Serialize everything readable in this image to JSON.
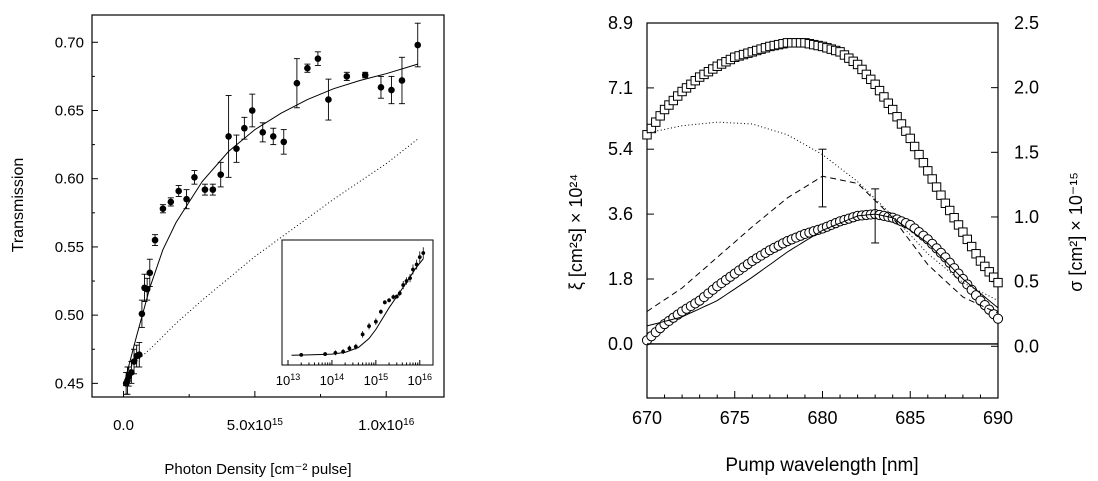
{
  "chart_data": [
    {
      "type": "scatter",
      "xlabel": "Photon Density [cm⁻² pulse]",
      "ylabel": "Transmission",
      "xlim": [
        -1200000000000000.0,
        1.22e+16
      ],
      "ylim": [
        0.44,
        0.72
      ],
      "xticks": [
        {
          "value": 0,
          "label": "0.0"
        },
        {
          "value": 5000000000000000.0,
          "label": "5.0x10",
          "exp": "15"
        },
        {
          "value": 1e+16,
          "label": "1.0x10",
          "exp": "16"
        }
      ],
      "yticks": [
        {
          "value": 0.45,
          "label": "0.45"
        },
        {
          "value": 0.5,
          "label": "0.50"
        },
        {
          "value": 0.55,
          "label": "0.55"
        },
        {
          "value": 0.6,
          "label": "0.60"
        },
        {
          "value": 0.65,
          "label": "0.65"
        },
        {
          "value": 0.7,
          "label": "0.70"
        }
      ],
      "series": [
        {
          "style": "filled-circle",
          "x": [
            100000000000000.0,
            150000000000000.0,
            200000000000000.0,
            300000000000000.0,
            400000000000000.0,
            500000000000000.0,
            600000000000000.0,
            700000000000000.0,
            800000000000000.0,
            900000000000000.0,
            1000000000000000.0,
            1200000000000000.0,
            1500000000000000.0,
            1800000000000000.0,
            2100000000000000.0,
            2400000000000000.0,
            2700000000000000.0,
            3100000000000000.0,
            3400000000000000.0,
            3700000000000000.0,
            4000000000000000.0,
            4300000000000000.0,
            4600000000000000.0,
            4900000000000000.0,
            5300000000000000.0,
            5700000000000000.0,
            6100000000000000.0,
            6600000000000000.0,
            7000000000000000.0,
            7400000000000000.0,
            7800000000000000.0,
            8500000000000000.0,
            9200000000000000.0,
            9800000000000000.0,
            1.02e+16,
            1.06e+16,
            1.12e+16
          ],
          "y": [
            0.45,
            0.452,
            0.455,
            0.458,
            0.466,
            0.47,
            0.471,
            0.501,
            0.52,
            0.519,
            0.531,
            0.555,
            0.578,
            0.583,
            0.591,
            0.585,
            0.601,
            0.592,
            0.592,
            0.603,
            0.631,
            0.622,
            0.637,
            0.65,
            0.634,
            0.631,
            0.627,
            0.67,
            0.681,
            0.688,
            0.658,
            0.675,
            0.676,
            0.667,
            0.665,
            0.672,
            0.698
          ],
          "err": [
            0.008,
            0.01,
            0.007,
            0.008,
            0.009,
            0.008,
            0.009,
            0.01,
            0.01,
            0.008,
            0.01,
            0.004,
            0.003,
            0.003,
            0.004,
            0.007,
            0.005,
            0.004,
            0.004,
            0.009,
            0.03,
            0.01,
            0.008,
            0.012,
            0.007,
            0.006,
            0.009,
            0.018,
            0.003,
            0.005,
            0.015,
            0.003,
            0.002,
            0.008,
            0.01,
            0.017,
            0.016
          ]
        },
        {
          "style": "solid-line",
          "x": [
            0,
            500000000000000.0,
            1000000000000000.0,
            1500000000000000.0,
            2000000000000000.0,
            3000000000000000.0,
            4000000000000000.0,
            5000000000000000.0,
            6000000000000000.0,
            7000000000000000.0,
            8000000000000000.0,
            9000000000000000.0,
            1e+16,
            1.12e+16
          ],
          "y": [
            0.448,
            0.485,
            0.52,
            0.548,
            0.568,
            0.598,
            0.62,
            0.636,
            0.648,
            0.658,
            0.666,
            0.672,
            0.677,
            0.684
          ]
        },
        {
          "style": "dotted-line",
          "x": [
            300000000000000.0,
            1000000000000000.0,
            2000000000000000.0,
            3000000000000000.0,
            4000000000000000.0,
            5000000000000000.0,
            6000000000000000.0,
            7000000000000000.0,
            8000000000000000.0,
            9000000000000000.0,
            1e+16,
            1.12e+16
          ],
          "y": [
            0.463,
            0.475,
            0.494,
            0.511,
            0.527,
            0.543,
            0.557,
            0.571,
            0.585,
            0.598,
            0.611,
            0.629
          ]
        }
      ]
    },
    {
      "type": "scatter",
      "xscale": "log",
      "xlim": [
        10000000000000.0,
        2e+16
      ],
      "ylim": [
        0.44,
        0.72
      ],
      "xticks": [
        {
          "value": 10000000000000.0,
          "base": "10",
          "exp": "13"
        },
        {
          "value": 100000000000000.0,
          "base": "10",
          "exp": "14"
        },
        {
          "value": 1000000000000000.0,
          "base": "10",
          "exp": "15"
        },
        {
          "value": 1e+16,
          "base": "10",
          "exp": "16"
        }
      ],
      "series": [
        {
          "style": "filled-circle",
          "x": [
            20000000000000.0,
            70000000000000.0,
            120000000000000.0,
            180000000000000.0,
            250000000000000.0,
            350000000000000.0,
            500000000000000.0,
            700000000000000.0,
            1000000000000000.0,
            1300000000000000.0,
            1600000000000000.0,
            2000000000000000.0,
            2500000000000000.0,
            3000000000000000.0,
            3500000000000000.0,
            4200000000000000.0,
            5000000000000000.0,
            6000000000000000.0,
            7000000000000000.0,
            8500000000000000.0,
            1e+16,
            1.2e+16
          ],
          "y": [
            0.45,
            0.452,
            0.455,
            0.458,
            0.466,
            0.47,
            0.5,
            0.52,
            0.531,
            0.555,
            0.578,
            0.583,
            0.591,
            0.592,
            0.6,
            0.62,
            0.63,
            0.637,
            0.658,
            0.67,
            0.688,
            0.698
          ],
          "err": [
            0.004,
            0.004,
            0.006,
            0.006,
            0.007,
            0.007,
            0.008,
            0.008,
            0.008,
            0.006,
            0.005,
            0.005,
            0.006,
            0.005,
            0.007,
            0.01,
            0.009,
            0.01,
            0.012,
            0.012,
            0.014,
            0.014
          ]
        },
        {
          "style": "solid-line",
          "x": [
            12000000000000.0,
            30000000000000.0,
            100000000000000.0,
            200000000000000.0,
            400000000000000.0,
            700000000000000.0,
            1000000000000000.0,
            1500000000000000.0,
            2000000000000000.0,
            3000000000000000.0,
            5000000000000000.0,
            8000000000000000.0,
            1.2e+16
          ],
          "y": [
            0.449,
            0.45,
            0.452,
            0.456,
            0.468,
            0.49,
            0.512,
            0.543,
            0.565,
            0.592,
            0.627,
            0.66,
            0.684
          ]
        }
      ]
    },
    {
      "type": "line",
      "xlabel": "Pump wavelength [nm]",
      "ylabel": "ξ [cm²s] × 10²⁴",
      "y2label": "σ [cm²] × 10⁻¹⁵",
      "xlim": [
        670,
        690
      ],
      "ylim": [
        -1.5,
        8.9
      ],
      "y2lim": [
        -0.4,
        2.5
      ],
      "xticks": [
        {
          "value": 670,
          "label": "670"
        },
        {
          "value": 675,
          "label": "675"
        },
        {
          "value": 680,
          "label": "680"
        },
        {
          "value": 685,
          "label": "685"
        },
        {
          "value": 690,
          "label": "690"
        }
      ],
      "yticks": [
        {
          "value": 0.0,
          "label": "0.0"
        },
        {
          "value": 1.8,
          "label": "1.8"
        },
        {
          "value": 3.6,
          "label": "3.6"
        },
        {
          "value": 5.4,
          "label": "5.4"
        },
        {
          "value": 7.1,
          "label": "7.1"
        },
        {
          "value": 8.9,
          "label": "8.9"
        }
      ],
      "y2ticks": [
        {
          "value": 0.0,
          "label": "0.0"
        },
        {
          "value": 0.5,
          "label": "0.5"
        },
        {
          "value": 1.0,
          "label": "1.0"
        },
        {
          "value": 1.5,
          "label": "1.5"
        },
        {
          "value": 2.0,
          "label": "2.0"
        },
        {
          "value": 2.5,
          "label": "2.5"
        }
      ],
      "series": [
        {
          "style": "open-square",
          "x": [
            670,
            671,
            672,
            673,
            674,
            675,
            676,
            677,
            678,
            679,
            680,
            681,
            682,
            683,
            684,
            685,
            686,
            687,
            688,
            689,
            690
          ],
          "y": [
            5.8,
            6.5,
            7.0,
            7.4,
            7.7,
            7.95,
            8.1,
            8.25,
            8.35,
            8.35,
            8.25,
            8.1,
            7.75,
            7.2,
            6.5,
            5.7,
            4.8,
            3.9,
            3.1,
            2.3,
            1.7
          ]
        },
        {
          "style": "open-circle",
          "x": [
            670,
            671,
            672,
            673,
            674,
            675,
            676,
            677,
            678,
            679,
            680,
            681,
            682,
            683,
            684,
            685,
            686,
            687,
            688,
            689,
            690
          ],
          "y": [
            0.1,
            0.55,
            0.9,
            1.2,
            1.6,
            1.95,
            2.3,
            2.6,
            2.85,
            3.05,
            3.2,
            3.4,
            3.55,
            3.6,
            3.5,
            3.3,
            2.9,
            2.4,
            1.8,
            1.2,
            0.7
          ]
        },
        {
          "style": "dotted-line",
          "x": [
            670,
            672,
            674,
            676,
            678,
            680,
            682,
            684,
            686,
            688,
            690
          ],
          "y": [
            5.85,
            6.05,
            6.15,
            6.1,
            5.8,
            5.25,
            4.5,
            3.55,
            2.5,
            1.7,
            1.2
          ]
        },
        {
          "style": "dashed-line",
          "x": [
            670,
            672,
            674,
            676,
            678,
            680,
            682,
            684,
            686,
            688,
            690
          ],
          "y": [
            0.9,
            1.55,
            2.4,
            3.25,
            4.05,
            4.65,
            4.45,
            3.5,
            2.2,
            1.3,
            0.85
          ]
        },
        {
          "style": "solid-line",
          "x": [
            670,
            672,
            674,
            676,
            678,
            680,
            682,
            683,
            684,
            686,
            688,
            690
          ],
          "y": [
            0.5,
            0.75,
            1.2,
            1.85,
            2.55,
            3.15,
            3.55,
            3.6,
            3.5,
            2.8,
            1.8,
            1.0
          ]
        },
        {
          "style": "baseline",
          "x": [
            670,
            690
          ],
          "y": [
            0,
            0
          ]
        }
      ],
      "errorbars": [
        {
          "x": 680,
          "y": 4.6,
          "err": 0.8
        },
        {
          "x": 683,
          "y": 3.55,
          "err": 0.75
        }
      ]
    }
  ]
}
